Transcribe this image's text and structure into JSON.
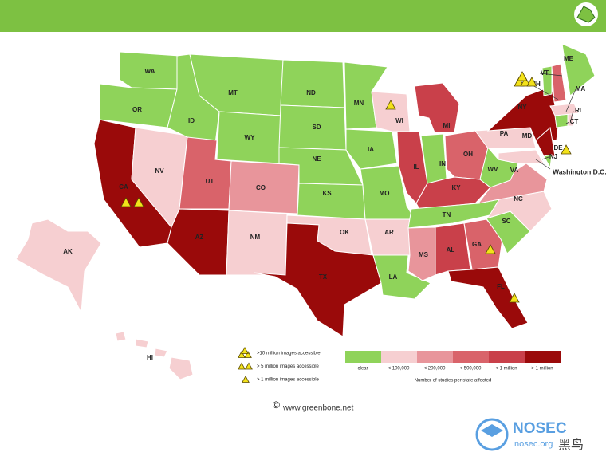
{
  "map": {
    "states": [
      {
        "label": "WA",
        "level": 0
      },
      {
        "label": "OR",
        "level": 0
      },
      {
        "label": "CA",
        "level": 5
      },
      {
        "label": "NV",
        "level": 1
      },
      {
        "label": "ID",
        "level": 0
      },
      {
        "label": "MT",
        "level": 0
      },
      {
        "label": "WY",
        "level": 0
      },
      {
        "label": "UT",
        "level": 3
      },
      {
        "label": "CO",
        "level": 2
      },
      {
        "label": "AZ",
        "level": 5
      },
      {
        "label": "NM",
        "level": 1
      },
      {
        "label": "ND",
        "level": 0
      },
      {
        "label": "SD",
        "level": 0
      },
      {
        "label": "NE",
        "level": 0
      },
      {
        "label": "KS",
        "level": 0
      },
      {
        "label": "OK",
        "level": 1
      },
      {
        "label": "TX",
        "level": 5
      },
      {
        "label": "MN",
        "level": 0
      },
      {
        "label": "IA",
        "level": 0
      },
      {
        "label": "MO",
        "level": 0
      },
      {
        "label": "AR",
        "level": 1
      },
      {
        "label": "LA",
        "level": 0
      },
      {
        "label": "WI",
        "level": 1
      },
      {
        "label": "IL",
        "level": 4
      },
      {
        "label": "MI",
        "level": 4
      },
      {
        "label": "IN",
        "level": 0
      },
      {
        "label": "OH",
        "level": 3
      },
      {
        "label": "KY",
        "level": 4
      },
      {
        "label": "TN",
        "level": 0
      },
      {
        "label": "MS",
        "level": 2
      },
      {
        "label": "AL",
        "level": 4
      },
      {
        "label": "GA",
        "level": 3
      },
      {
        "label": "FL",
        "level": 5
      },
      {
        "label": "SC",
        "level": 0
      },
      {
        "label": "NC",
        "level": 1
      },
      {
        "label": "VA",
        "level": 2
      },
      {
        "label": "WV",
        "level": 0
      },
      {
        "label": "PA",
        "level": 1
      },
      {
        "label": "NY",
        "level": 5
      },
      {
        "label": "NJ",
        "level": 5
      },
      {
        "label": "DE",
        "level": 0
      },
      {
        "label": "MD",
        "level": 1
      },
      {
        "label": "CT",
        "level": 0
      },
      {
        "label": "RI",
        "level": 1
      },
      {
        "label": "MA",
        "level": 1
      },
      {
        "label": "VT",
        "level": 0
      },
      {
        "label": "NH",
        "level": 3
      },
      {
        "label": "ME",
        "level": 0
      },
      {
        "label": "AK",
        "level": 1
      },
      {
        "label": "HI",
        "level": 1
      }
    ],
    "dc_label": "Washington D.C.",
    "legend": {
      "colors": [
        "#8fd35a",
        "#f6cfd1",
        "#e8959b",
        "#d9636a",
        "#c9404a",
        "#9a0a0a"
      ],
      "labels": [
        "clear",
        "< 100,000",
        "< 200,000",
        "< 500,000",
        "< 1 million",
        "> 1 million"
      ],
      "caption": "Number of studies per state affected"
    },
    "icon_legend": [
      ">10 million images accessible",
      "> 5 million images accessible",
      "> 1 million images accessible"
    ]
  },
  "footer": {
    "symbol": "©",
    "site": "www.greenbone.net"
  },
  "watermark": {
    "brand": "NOSEC",
    "domain": "nosec.org",
    "tag": "黑鸟"
  }
}
